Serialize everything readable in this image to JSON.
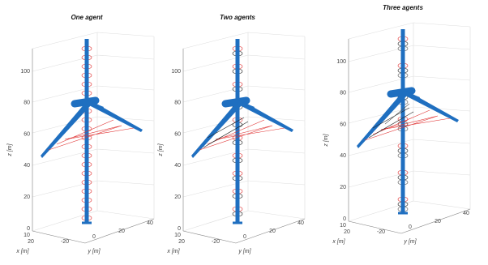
{
  "panels": [
    {
      "title": "One agent",
      "z_ticks": [
        "0",
        "20",
        "40",
        "60",
        "80",
        "100"
      ],
      "y_ticks": [
        "-20",
        "0",
        "20",
        "40"
      ],
      "x_ticks": [
        "10",
        "20"
      ],
      "z_label": "z [m]",
      "y_label": "y [m]",
      "x_label": "x [m]"
    },
    {
      "title": "Two agents",
      "z_ticks": [
        "0",
        "20",
        "40",
        "60",
        "80",
        "100"
      ],
      "y_ticks": [
        "-20",
        "0",
        "20",
        "40"
      ],
      "x_ticks": [
        "10",
        "20"
      ],
      "z_label": "z [m]",
      "y_label": "y [m]",
      "x_label": "x [m]"
    },
    {
      "title": "Three agents",
      "z_ticks": [
        "0",
        "20",
        "40",
        "60",
        "80",
        "100"
      ],
      "y_ticks": [
        "-20",
        "0",
        "20",
        "40"
      ],
      "x_ticks": [
        "10",
        "20"
      ],
      "z_label": "z [m]",
      "y_label": "y [m]",
      "x_label": "x [m]"
    }
  ]
}
